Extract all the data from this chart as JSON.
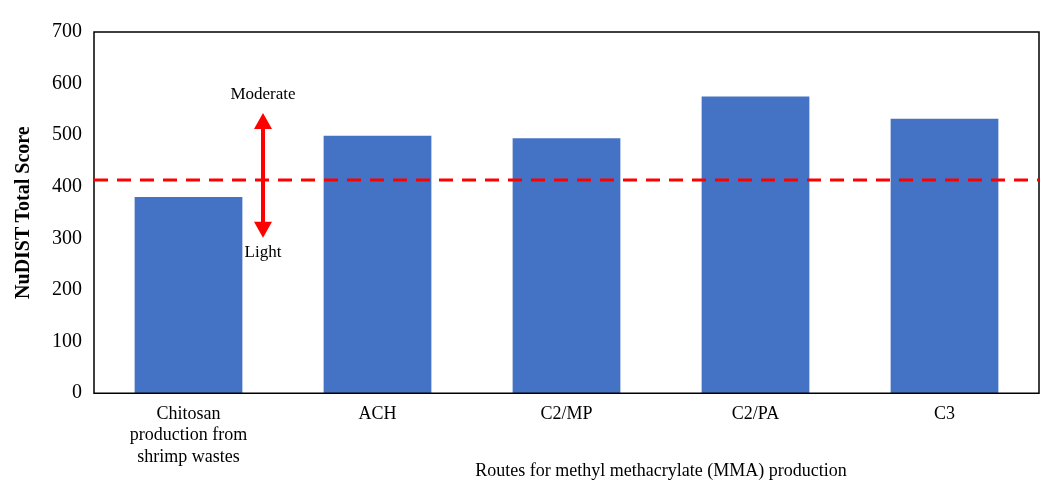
{
  "chart_data": {
    "type": "bar",
    "ylabel": "NuDIST Total Score",
    "xlabel": "Routes for methyl methacrylate (MMA) production",
    "categories": [
      "Chitosan production from shrimp wastes",
      "ACH",
      "C2/MP",
      "C2/PA",
      "C3"
    ],
    "values": [
      380,
      499,
      494,
      575,
      532
    ],
    "color": "#4472c4",
    "ylim": [
      0,
      700
    ],
    "yticks": [
      0,
      100,
      200,
      300,
      400,
      500,
      600,
      700
    ],
    "grid": false,
    "legend": false,
    "ref_lines": [
      {
        "axis": "y",
        "value": 413,
        "color": "#ff0000",
        "line_style": "dashed"
      }
    ],
    "annotations": [
      "Moderate",
      "Light"
    ]
  }
}
